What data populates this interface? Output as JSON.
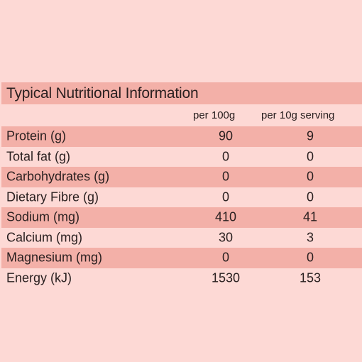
{
  "table": {
    "title": "Typical Nutritional Information",
    "columns": [
      "per 100g",
      "per 10g serving"
    ],
    "rows": [
      {
        "label": "Protein (g)",
        "per_100g": "90",
        "per_serving": "9"
      },
      {
        "label": "Total fat (g)",
        "per_100g": "0",
        "per_serving": "0"
      },
      {
        "label": "Carbohydrates (g)",
        "per_100g": "0",
        "per_serving": "0"
      },
      {
        "label": "Dietary Fibre (g)",
        "per_100g": "0",
        "per_serving": "0"
      },
      {
        "label": "Sodium (mg)",
        "per_100g": "410",
        "per_serving": "41"
      },
      {
        "label": "Calcium (mg)",
        "per_100g": "30",
        "per_serving": "3"
      },
      {
        "label": "Magnesium (mg)",
        "per_100g": "0",
        "per_serving": "0"
      },
      {
        "label": "Energy (kJ)",
        "per_100g": "1530",
        "per_serving": "153"
      }
    ]
  },
  "colors": {
    "background": "#fdd9d5",
    "band": "#f3b0a8",
    "text": "#2a2020"
  }
}
